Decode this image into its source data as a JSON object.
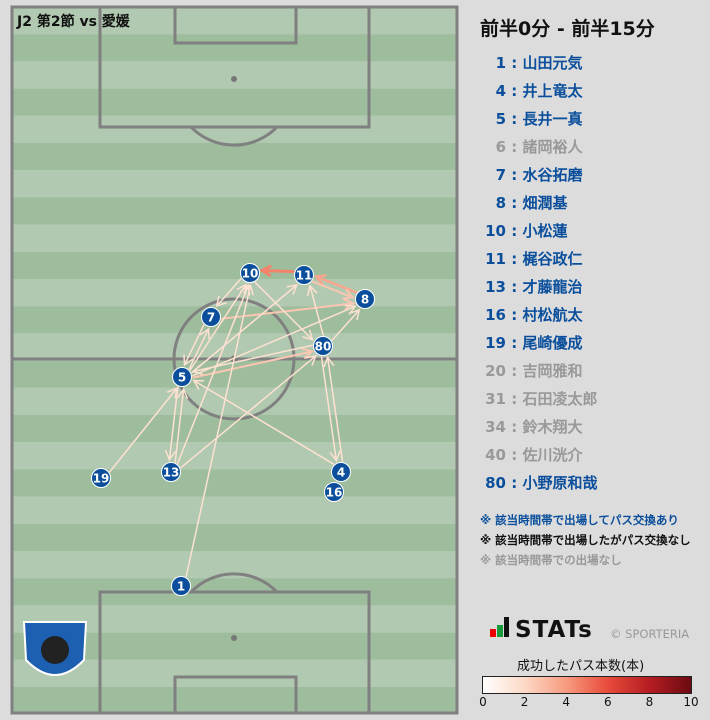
{
  "header": {
    "match_title": "J2 第2節 vs 愛媛",
    "period": "前半0分 - 前半15分"
  },
  "colors": {
    "active": "#0b4f9c",
    "no_pass": "#111111",
    "absent": "#999999"
  },
  "players": [
    {
      "num": "1",
      "name": "山田元気",
      "status": "active"
    },
    {
      "num": "4",
      "name": "井上竜太",
      "status": "active"
    },
    {
      "num": "5",
      "name": "長井一真",
      "status": "active"
    },
    {
      "num": "6",
      "name": "諸岡裕人",
      "status": "absent"
    },
    {
      "num": "7",
      "name": "水谷拓磨",
      "status": "active"
    },
    {
      "num": "8",
      "name": "畑潤基",
      "status": "active"
    },
    {
      "num": "10",
      "name": "小松蓮",
      "status": "active"
    },
    {
      "num": "11",
      "name": "梶谷政仁",
      "status": "active"
    },
    {
      "num": "13",
      "name": "才藤龍治",
      "status": "active"
    },
    {
      "num": "16",
      "name": "村松航太",
      "status": "active"
    },
    {
      "num": "19",
      "name": "尾崎優成",
      "status": "active"
    },
    {
      "num": "20",
      "name": "吉岡雅和",
      "status": "absent"
    },
    {
      "num": "31",
      "name": "石田凌太郎",
      "status": "absent"
    },
    {
      "num": "34",
      "name": "鈴木翔大",
      "status": "absent"
    },
    {
      "num": "40",
      "name": "佐川洸介",
      "status": "absent"
    },
    {
      "num": "80",
      "name": "小野原和哉",
      "status": "active"
    }
  ],
  "notes": [
    "※ 該当時間帯で出場してパス交換あり",
    "※ 該当時間帯で出場したがパス交換なし",
    "※ 該当時間帯での出場なし"
  ],
  "branding": {
    "stats": "STATs",
    "copyright": "© SPORTERIA",
    "club_logo": "AKITA BLAUBLITZ"
  },
  "legend": {
    "title": "成功したパス本数(本)",
    "ticks": [
      "0",
      "2",
      "4",
      "6",
      "8",
      "10"
    ],
    "min": 0,
    "max": 10
  },
  "passes": [
    {
      "from": "11",
      "to": "10",
      "count": 4
    },
    {
      "from": "8",
      "to": "11",
      "count": 3
    },
    {
      "from": "11",
      "to": "8",
      "count": 2
    },
    {
      "from": "7",
      "to": "8",
      "count": 2
    },
    {
      "from": "5",
      "to": "80",
      "count": 2
    },
    {
      "from": "5",
      "to": "8",
      "count": 1
    },
    {
      "from": "10",
      "to": "80",
      "count": 1
    },
    {
      "from": "80",
      "to": "11",
      "count": 1
    },
    {
      "from": "80",
      "to": "8",
      "count": 1
    },
    {
      "from": "5",
      "to": "10",
      "count": 1
    },
    {
      "from": "5",
      "to": "7",
      "count": 1
    },
    {
      "from": "5",
      "to": "11",
      "count": 1
    },
    {
      "from": "13",
      "to": "5",
      "count": 1
    },
    {
      "from": "13",
      "to": "10",
      "count": 1
    },
    {
      "from": "13",
      "to": "80",
      "count": 1
    },
    {
      "from": "19",
      "to": "5",
      "count": 1
    },
    {
      "from": "4",
      "to": "80",
      "count": 1
    },
    {
      "from": "80",
      "to": "4",
      "count": 1
    },
    {
      "from": "1",
      "to": "10",
      "count": 1
    },
    {
      "from": "5",
      "to": "13",
      "count": 1
    },
    {
      "from": "7",
      "to": "5",
      "count": 1
    },
    {
      "from": "10",
      "to": "7",
      "count": 1
    },
    {
      "from": "4",
      "to": "5",
      "count": 1
    },
    {
      "from": "80",
      "to": "5",
      "count": 1
    }
  ]
}
